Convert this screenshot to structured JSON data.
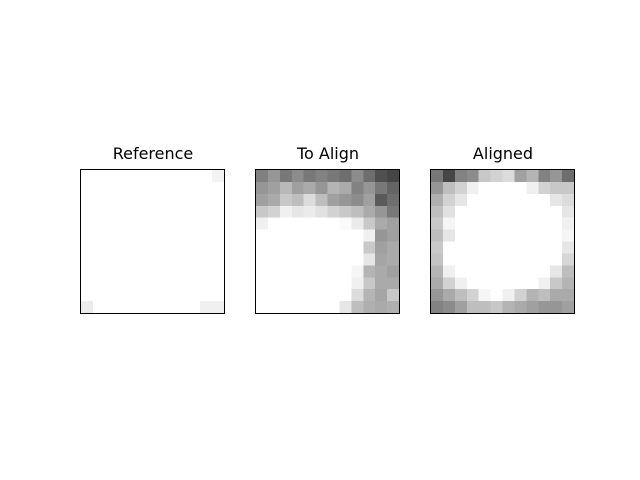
{
  "figure": {
    "colormap": "gray",
    "panels": [
      {
        "title": "Reference",
        "grid_size": 12,
        "pixels": [
          [
            255,
            255,
            255,
            255,
            255,
            255,
            255,
            255,
            255,
            255,
            255,
            243
          ],
          [
            255,
            255,
            255,
            255,
            255,
            255,
            255,
            255,
            255,
            255,
            255,
            255
          ],
          [
            255,
            255,
            255,
            255,
            255,
            255,
            255,
            255,
            255,
            255,
            255,
            255
          ],
          [
            255,
            255,
            255,
            255,
            255,
            255,
            255,
            255,
            255,
            255,
            255,
            255
          ],
          [
            255,
            255,
            255,
            255,
            255,
            255,
            255,
            255,
            255,
            255,
            255,
            255
          ],
          [
            255,
            255,
            255,
            255,
            255,
            255,
            255,
            255,
            255,
            255,
            255,
            255
          ],
          [
            255,
            255,
            255,
            255,
            255,
            255,
            255,
            255,
            255,
            255,
            255,
            255
          ],
          [
            255,
            255,
            255,
            255,
            255,
            255,
            255,
            255,
            255,
            255,
            255,
            255
          ],
          [
            255,
            255,
            255,
            255,
            255,
            255,
            255,
            255,
            255,
            255,
            255,
            255
          ],
          [
            255,
            255,
            255,
            255,
            255,
            255,
            255,
            255,
            255,
            255,
            255,
            255
          ],
          [
            255,
            255,
            255,
            255,
            255,
            255,
            255,
            255,
            255,
            255,
            255,
            255
          ],
          [
            236,
            255,
            255,
            255,
            255,
            255,
            255,
            255,
            255,
            255,
            240,
            240
          ]
        ]
      },
      {
        "title": "To Align",
        "grid_size": 12,
        "pixels": [
          [
            128,
            150,
            120,
            140,
            120,
            130,
            120,
            110,
            140,
            110,
            80,
            70
          ],
          [
            150,
            160,
            185,
            160,
            170,
            150,
            180,
            170,
            130,
            150,
            120,
            100
          ],
          [
            160,
            170,
            200,
            190,
            220,
            190,
            160,
            150,
            140,
            160,
            90,
            110
          ],
          [
            200,
            210,
            240,
            230,
            235,
            225,
            210,
            200,
            190,
            170,
            150,
            120
          ],
          [
            240,
            255,
            255,
            255,
            255,
            255,
            255,
            250,
            235,
            200,
            170,
            160
          ],
          [
            255,
            255,
            255,
            255,
            255,
            255,
            255,
            255,
            255,
            240,
            150,
            160
          ],
          [
            255,
            255,
            255,
            255,
            255,
            255,
            255,
            255,
            255,
            200,
            160,
            170
          ],
          [
            255,
            255,
            255,
            255,
            255,
            255,
            255,
            255,
            255,
            230,
            165,
            170
          ],
          [
            255,
            255,
            255,
            255,
            255,
            255,
            255,
            255,
            245,
            180,
            170,
            160
          ],
          [
            255,
            255,
            255,
            255,
            255,
            255,
            255,
            255,
            240,
            200,
            170,
            170
          ],
          [
            255,
            255,
            255,
            255,
            255,
            255,
            255,
            255,
            220,
            180,
            165,
            200
          ],
          [
            255,
            255,
            255,
            255,
            255,
            255,
            255,
            230,
            190,
            175,
            170,
            175
          ]
        ]
      },
      {
        "title": "Aligned",
        "grid_size": 12,
        "pixels": [
          [
            120,
            70,
            130,
            140,
            200,
            210,
            220,
            160,
            180,
            130,
            150,
            110
          ],
          [
            150,
            190,
            210,
            240,
            255,
            255,
            255,
            255,
            240,
            210,
            200,
            200
          ],
          [
            175,
            210,
            230,
            255,
            255,
            255,
            255,
            255,
            255,
            255,
            230,
            220
          ],
          [
            190,
            225,
            255,
            255,
            255,
            255,
            255,
            255,
            255,
            255,
            255,
            230
          ],
          [
            200,
            245,
            255,
            255,
            255,
            255,
            255,
            255,
            255,
            255,
            255,
            240
          ],
          [
            190,
            230,
            255,
            255,
            255,
            255,
            255,
            255,
            255,
            255,
            255,
            245
          ],
          [
            200,
            255,
            255,
            255,
            255,
            255,
            255,
            255,
            255,
            255,
            255,
            230
          ],
          [
            195,
            255,
            255,
            255,
            255,
            255,
            255,
            255,
            255,
            255,
            255,
            215
          ],
          [
            180,
            240,
            255,
            255,
            255,
            255,
            255,
            255,
            255,
            255,
            230,
            190
          ],
          [
            170,
            210,
            240,
            255,
            255,
            255,
            255,
            255,
            255,
            240,
            200,
            180
          ],
          [
            150,
            170,
            190,
            210,
            245,
            255,
            240,
            210,
            180,
            190,
            170,
            170
          ],
          [
            130,
            140,
            160,
            190,
            190,
            200,
            180,
            170,
            160,
            150,
            150,
            160
          ]
        ]
      }
    ]
  }
}
